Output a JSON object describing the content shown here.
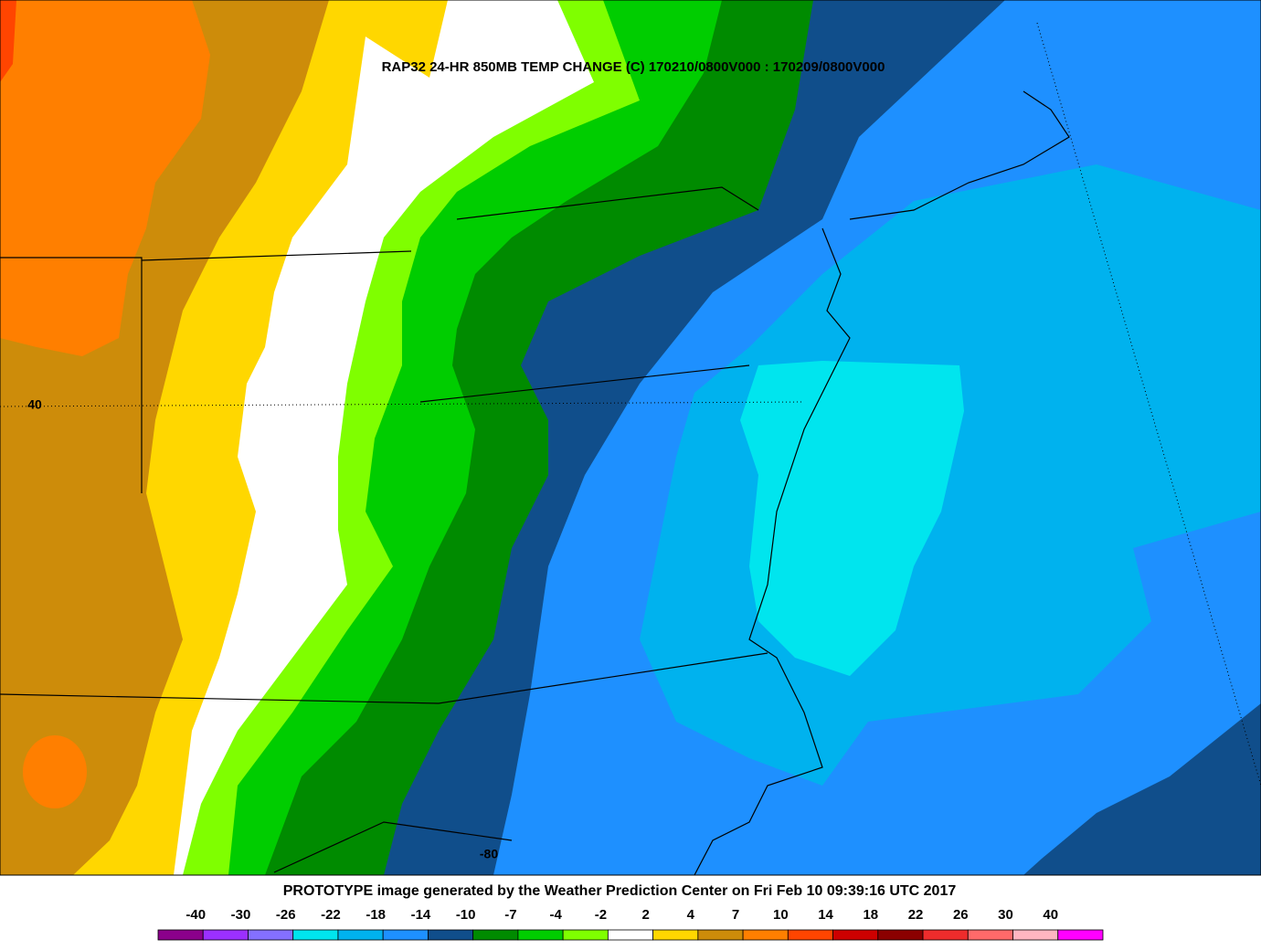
{
  "map": {
    "title": "RAP32 24-HR 850MB TEMP CHANGE (C) 170210/0800V000 : 170209/0800V000",
    "footer": "PROTOTYPE image generated by the Weather Prediction Center on Fri Feb 10 09:39:16 UTC 2017",
    "grid_labels": {
      "latitude": 40,
      "longitude": -80
    },
    "colorbar": {
      "colors": [
        "#8b008b",
        "#9b30ff",
        "#8470ff",
        "#00e5ee",
        "#00b2ee",
        "#1e90ff",
        "#104e8b",
        "#008b00",
        "#00cd00",
        "#7fff00",
        "#ffffff",
        "#ffd700",
        "#cd8c0a",
        "#ff7f00",
        "#ff4500",
        "#cd0000",
        "#8b0000",
        "#ee2c2c",
        "#ff6a6a",
        "#ffb6c1",
        "#ff00ff"
      ],
      "ticks": [
        -40,
        -30,
        -26,
        -22,
        -18,
        -14,
        -10,
        -7,
        -4,
        -2,
        2,
        4,
        7,
        10,
        14,
        18,
        22,
        26,
        30,
        40
      ]
    }
  }
}
